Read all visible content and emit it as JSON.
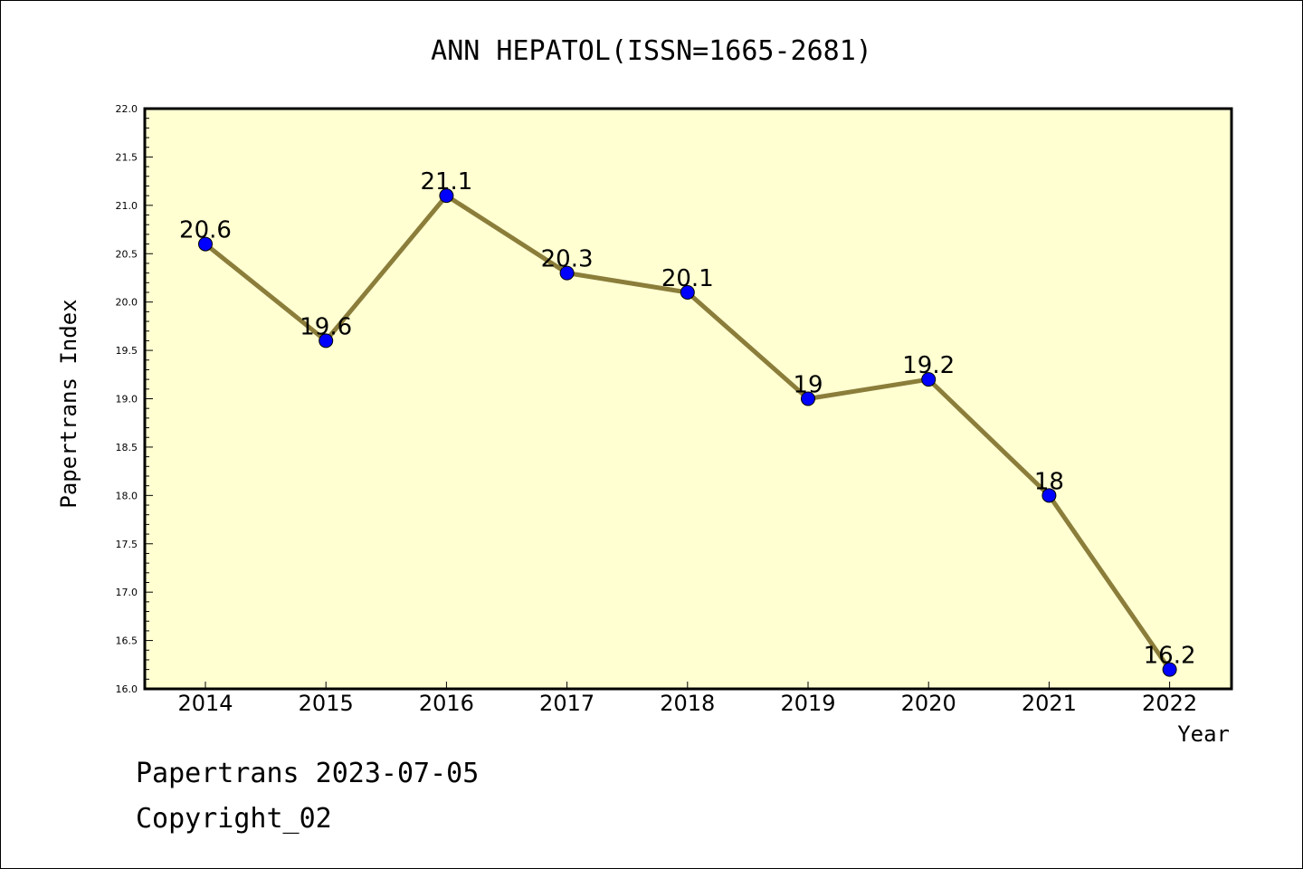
{
  "chart_data": {
    "type": "line",
    "title": "ANN HEPATOL(ISSN=1665-2681)",
    "xlabel": "Year",
    "ylabel": "Papertrans Index",
    "categories": [
      "2014",
      "2015",
      "2016",
      "2017",
      "2018",
      "2019",
      "2020",
      "2021",
      "2022"
    ],
    "series": [
      {
        "values": [
          20.6,
          19.6,
          21.1,
          20.3,
          20.1,
          19.0,
          19.2,
          18.0,
          16.2
        ],
        "data_labels": [
          "20.6",
          "19.6",
          "21.1",
          "20.3",
          "20.1",
          "19",
          "19.2",
          "18",
          "16.2"
        ]
      }
    ],
    "ylim": [
      16.0,
      22.0
    ],
    "yticks": [
      "16.0",
      "16.5",
      "17.0",
      "17.5",
      "18.0",
      "18.5",
      "19.0",
      "19.5",
      "20.0",
      "20.5",
      "21.0",
      "21.5",
      "22.0"
    ],
    "grid": false,
    "colors": {
      "plot_bg": "#ffffd2",
      "line": "#8b7d3a",
      "marker": "#0000ff"
    }
  },
  "footer": {
    "line1": "Papertrans 2023-07-05",
    "line2": "Copyright_02"
  }
}
